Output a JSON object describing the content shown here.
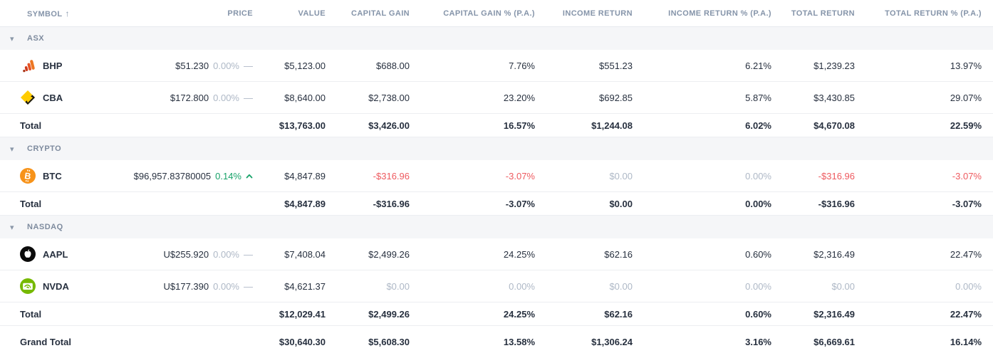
{
  "colors": {
    "text": "#27303f",
    "muted": "#aeb8c6",
    "negative": "#ee5a5f",
    "positive": "#17a269",
    "header_text": "#8594a9",
    "section_bg": "#f5f6f8",
    "row_border": "#eceef1",
    "bhp_orange": "#e65425",
    "cba_yellow": "#ffcc00",
    "btc_orange": "#f7931a",
    "aapl_black": "#0b0b0b",
    "nvda_green": "#76b900"
  },
  "header": {
    "sort_icon": "↑",
    "columns": [
      "SYMBOL",
      "PRICE",
      "VALUE",
      "CAPITAL GAIN",
      "CAPITAL GAIN % (P.A.)",
      "INCOME RETURN",
      "INCOME RETURN % (P.A.)",
      "TOTAL RETURN",
      "TOTAL RETURN % (P.A.)"
    ]
  },
  "collapse_icon": "▾",
  "flat_dash_icon": "—",
  "groups": [
    {
      "name": "ASX",
      "holdings": [
        {
          "symbol": "BHP",
          "icon": "bhp-logo",
          "price": "$51.230",
          "change": "0.00%",
          "trend": "flat",
          "values": [
            "$5,123.00",
            "$688.00",
            "7.76%",
            "$551.23",
            "6.21%",
            "$1,239.23",
            "13.97%"
          ],
          "tones": [
            "normal",
            "normal",
            "normal",
            "normal",
            "normal",
            "normal",
            "normal"
          ]
        },
        {
          "symbol": "CBA",
          "icon": "cba-logo",
          "price": "$172.800",
          "change": "0.00%",
          "trend": "flat",
          "values": [
            "$8,640.00",
            "$2,738.00",
            "23.20%",
            "$692.85",
            "5.87%",
            "$3,430.85",
            "29.07%"
          ],
          "tones": [
            "normal",
            "normal",
            "normal",
            "normal",
            "normal",
            "normal",
            "normal"
          ]
        }
      ],
      "total": {
        "label": "Total",
        "values": [
          "$13,763.00",
          "$3,426.00",
          "16.57%",
          "$1,244.08",
          "6.02%",
          "$4,670.08",
          "22.59%"
        ]
      }
    },
    {
      "name": "CRYPTO",
      "holdings": [
        {
          "symbol": "BTC",
          "icon": "btc-logo",
          "price": "$96,957.83780005",
          "change": "0.14%",
          "trend": "up",
          "values": [
            "$4,847.89",
            "-$316.96",
            "-3.07%",
            "$0.00",
            "0.00%",
            "-$316.96",
            "-3.07%"
          ],
          "tones": [
            "normal",
            "neg",
            "neg",
            "muted",
            "muted",
            "neg",
            "neg"
          ]
        }
      ],
      "total": {
        "label": "Total",
        "values": [
          "$4,847.89",
          "-$316.96",
          "-3.07%",
          "$0.00",
          "0.00%",
          "-$316.96",
          "-3.07%"
        ]
      }
    },
    {
      "name": "NASDAQ",
      "holdings": [
        {
          "symbol": "AAPL",
          "icon": "aapl-logo",
          "price": "U$255.920",
          "change": "0.00%",
          "trend": "flat",
          "values": [
            "$7,408.04",
            "$2,499.26",
            "24.25%",
            "$62.16",
            "0.60%",
            "$2,316.49",
            "22.47%"
          ],
          "tones": [
            "normal",
            "normal",
            "normal",
            "normal",
            "normal",
            "normal",
            "normal"
          ]
        },
        {
          "symbol": "NVDA",
          "icon": "nvda-logo",
          "price": "U$177.390",
          "change": "0.00%",
          "trend": "flat",
          "values": [
            "$4,621.37",
            "$0.00",
            "0.00%",
            "$0.00",
            "0.00%",
            "$0.00",
            "0.00%"
          ],
          "tones": [
            "normal",
            "muted",
            "muted",
            "muted",
            "muted",
            "muted",
            "muted"
          ]
        }
      ],
      "total": {
        "label": "Total",
        "values": [
          "$12,029.41",
          "$2,499.26",
          "24.25%",
          "$62.16",
          "0.60%",
          "$2,316.49",
          "22.47%"
        ]
      }
    }
  ],
  "grand_total": {
    "label": "Grand Total",
    "values": [
      "$30,640.30",
      "$5,608.30",
      "13.58%",
      "$1,306.24",
      "3.16%",
      "$6,669.61",
      "16.14%"
    ]
  }
}
